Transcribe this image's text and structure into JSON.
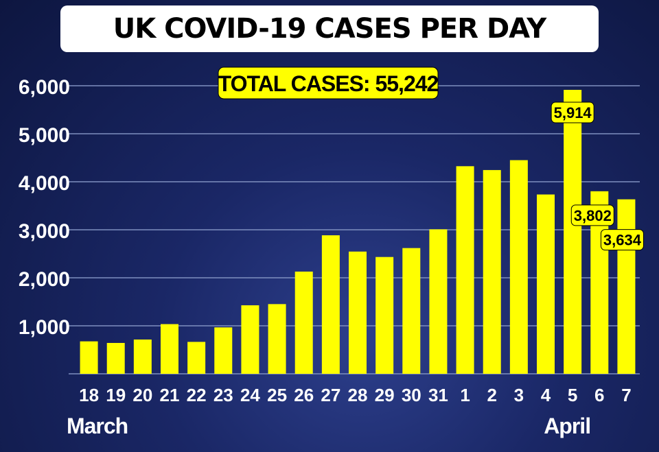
{
  "chart_data": {
    "type": "bar",
    "title": "UK COVID-19 CASES PER DAY",
    "annotation": "TOTAL CASES:  55,242",
    "categories": [
      "18",
      "19",
      "20",
      "21",
      "22",
      "23",
      "24",
      "25",
      "26",
      "27",
      "28",
      "29",
      "30",
      "31",
      "1",
      "2",
      "3",
      "4",
      "5",
      "6",
      "7"
    ],
    "values": [
      676,
      643,
      714,
      1035,
      665,
      967,
      1427,
      1452,
      2129,
      2885,
      2546,
      2433,
      2619,
      3009,
      4324,
      4244,
      4450,
      3735,
      5914,
      3802,
      3634
    ],
    "value_labels": [
      {
        "category": "5",
        "text": "5,914"
      },
      {
        "category": "6",
        "text": "3,802"
      },
      {
        "category": "7",
        "text": "3,634"
      }
    ],
    "month_labels": [
      {
        "category": "18",
        "text": "March"
      },
      {
        "category": "5",
        "text": "April"
      }
    ],
    "yticks": [
      "1,000",
      "2,000",
      "3,000",
      "4,000",
      "5,000",
      "6,000"
    ],
    "ylim": [
      0,
      6000
    ],
    "grid": true,
    "colors": {
      "bar": "#ffff00",
      "label_bg": "#ffff00",
      "text": "#ffffff",
      "grid": "#7f8fbf"
    }
  }
}
